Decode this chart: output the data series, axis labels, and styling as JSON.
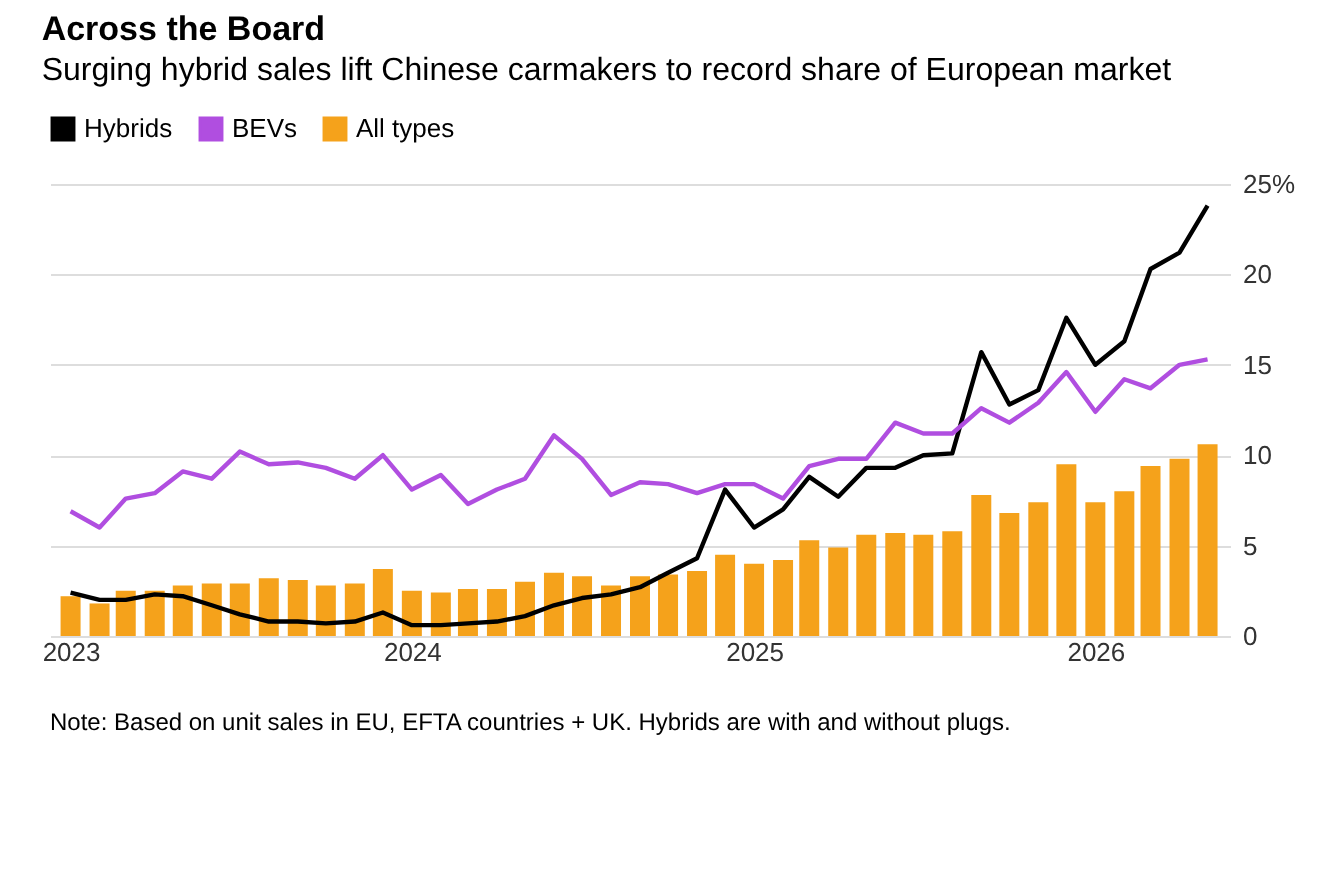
{
  "chart_data": {
    "type": "bar",
    "title": "Across the Board",
    "subtitle": "Surging hybrid sales lift Chinese carmakers to record share of European market",
    "x": [
      "2023-01",
      "2023-02",
      "2023-03",
      "2023-04",
      "2023-05",
      "2023-06",
      "2023-07",
      "2023-08",
      "2023-09",
      "2023-10",
      "2023-11",
      "2023-12",
      "2024-01",
      "2024-02",
      "2024-03",
      "2024-04",
      "2024-05",
      "2024-06",
      "2024-07",
      "2024-08",
      "2024-09",
      "2024-10",
      "2024-11",
      "2024-12",
      "2025-01",
      "2025-02",
      "2025-03",
      "2025-04",
      "2025-05",
      "2025-06",
      "2025-07",
      "2025-08",
      "2025-09",
      "2025-10",
      "2025-11",
      "2025-12",
      "2026-01",
      "2026-02",
      "2026-03",
      "2026-04",
      "2026-05"
    ],
    "series": [
      {
        "name": "Hybrids",
        "type": "line",
        "color": "#000000",
        "values": [
          2.4,
          2.0,
          2.0,
          2.3,
          2.2,
          1.7,
          1.2,
          0.8,
          0.8,
          0.7,
          0.8,
          1.3,
          0.6,
          0.6,
          0.7,
          0.8,
          1.1,
          1.7,
          2.1,
          2.3,
          2.7,
          3.5,
          4.3,
          8.1,
          6.0,
          7.0,
          8.8,
          7.7,
          9.3,
          9.3,
          10.0,
          10.1,
          15.7,
          12.8,
          13.6,
          17.6,
          15.0,
          16.3,
          20.3,
          21.2,
          23.8
        ]
      },
      {
        "name": "BEVs",
        "type": "line",
        "color": "#b04ee0",
        "values": [
          6.9,
          6.0,
          7.6,
          7.9,
          9.1,
          8.7,
          10.2,
          9.5,
          9.6,
          9.3,
          8.7,
          10.0,
          8.1,
          8.9,
          7.3,
          8.1,
          8.7,
          11.1,
          9.8,
          7.8,
          8.5,
          8.4,
          7.9,
          8.4,
          8.4,
          7.6,
          9.4,
          9.8,
          9.8,
          11.8,
          11.2,
          11.2,
          12.6,
          11.8,
          12.9,
          14.6,
          12.4,
          14.2,
          13.7,
          15.0,
          15.3
        ]
      },
      {
        "name": "All types",
        "type": "bar",
        "color": "#f5a21b",
        "values": [
          2.2,
          1.8,
          2.5,
          2.5,
          2.8,
          2.9,
          2.9,
          3.2,
          3.1,
          2.8,
          2.9,
          3.7,
          2.5,
          2.4,
          2.6,
          2.6,
          3.0,
          3.5,
          3.3,
          2.8,
          3.3,
          3.4,
          3.6,
          4.5,
          4.0,
          4.2,
          5.3,
          4.9,
          5.6,
          5.7,
          5.6,
          5.8,
          7.8,
          6.8,
          7.4,
          9.5,
          7.4,
          8.0,
          9.4,
          9.8,
          10.6
        ]
      }
    ],
    "xlim": [
      "2022-12-10",
      "2026-05-25"
    ],
    "xticks": [
      {
        "value": "2023-01",
        "label": "2023"
      },
      {
        "value": "2024-01",
        "label": "2024"
      },
      {
        "value": "2025-01",
        "label": "2025"
      },
      {
        "value": "2026-01",
        "label": "2026"
      }
    ],
    "ylim": [
      0,
      25
    ],
    "yticks": [
      0,
      5,
      10,
      15,
      20,
      {
        "value": 25,
        "label": "25%"
      }
    ],
    "grid": "y",
    "legend": "top left",
    "line_style": "solid",
    "annotations": [
      "Note: Based on unit sales in EU, EFTA countries + UK. Hybrids are with and without plugs."
    ]
  }
}
